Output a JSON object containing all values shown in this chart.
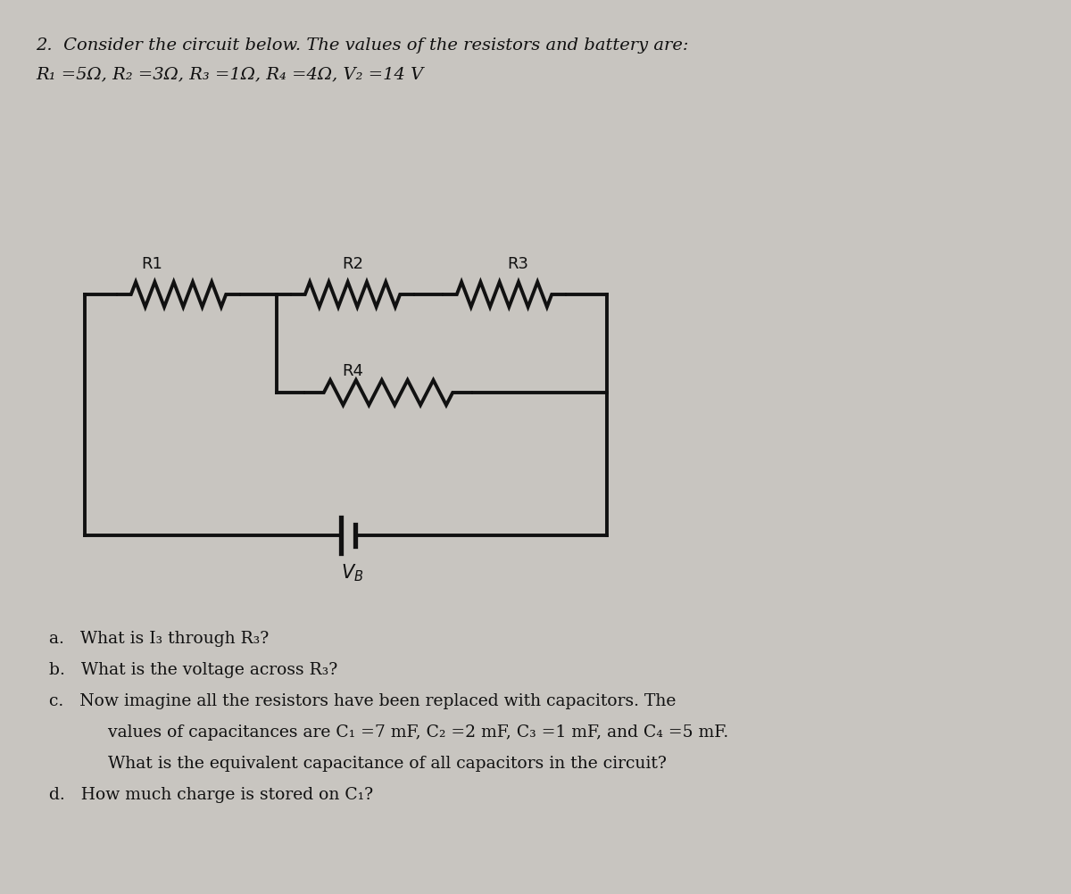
{
  "bg_color": "#c8c5c0",
  "page_color": "#e8e5e0",
  "title_line1": "2.  Consider the circuit below. The values of the resistors and battery are:",
  "title_line2": "R₁ =5Ω, R₂ =3Ω, R₃ =1Ω, R₄ =4Ω, V₂ =14 V",
  "question_a": "a.   What is I₃ through R₃?",
  "question_b": "b.   What is the voltage across R₃?",
  "question_c_line1": "c.   Now imagine all the resistors have been replaced with capacitors. The",
  "question_c_line2": "      values of capacitances are C₁ =7 mF, C₂ =2 mF, C₃ =1 mF, and C₄ =5 mF.",
  "question_c_line3": "      What is the equivalent capacitance of all capacitors in the circuit?",
  "question_d": "d.   How much charge is stored on C₁?",
  "lc": "#111111",
  "lw": 2.8,
  "fs_label": 13,
  "fs_title": 14,
  "fs_q": 13.5,
  "tc": "#111111"
}
